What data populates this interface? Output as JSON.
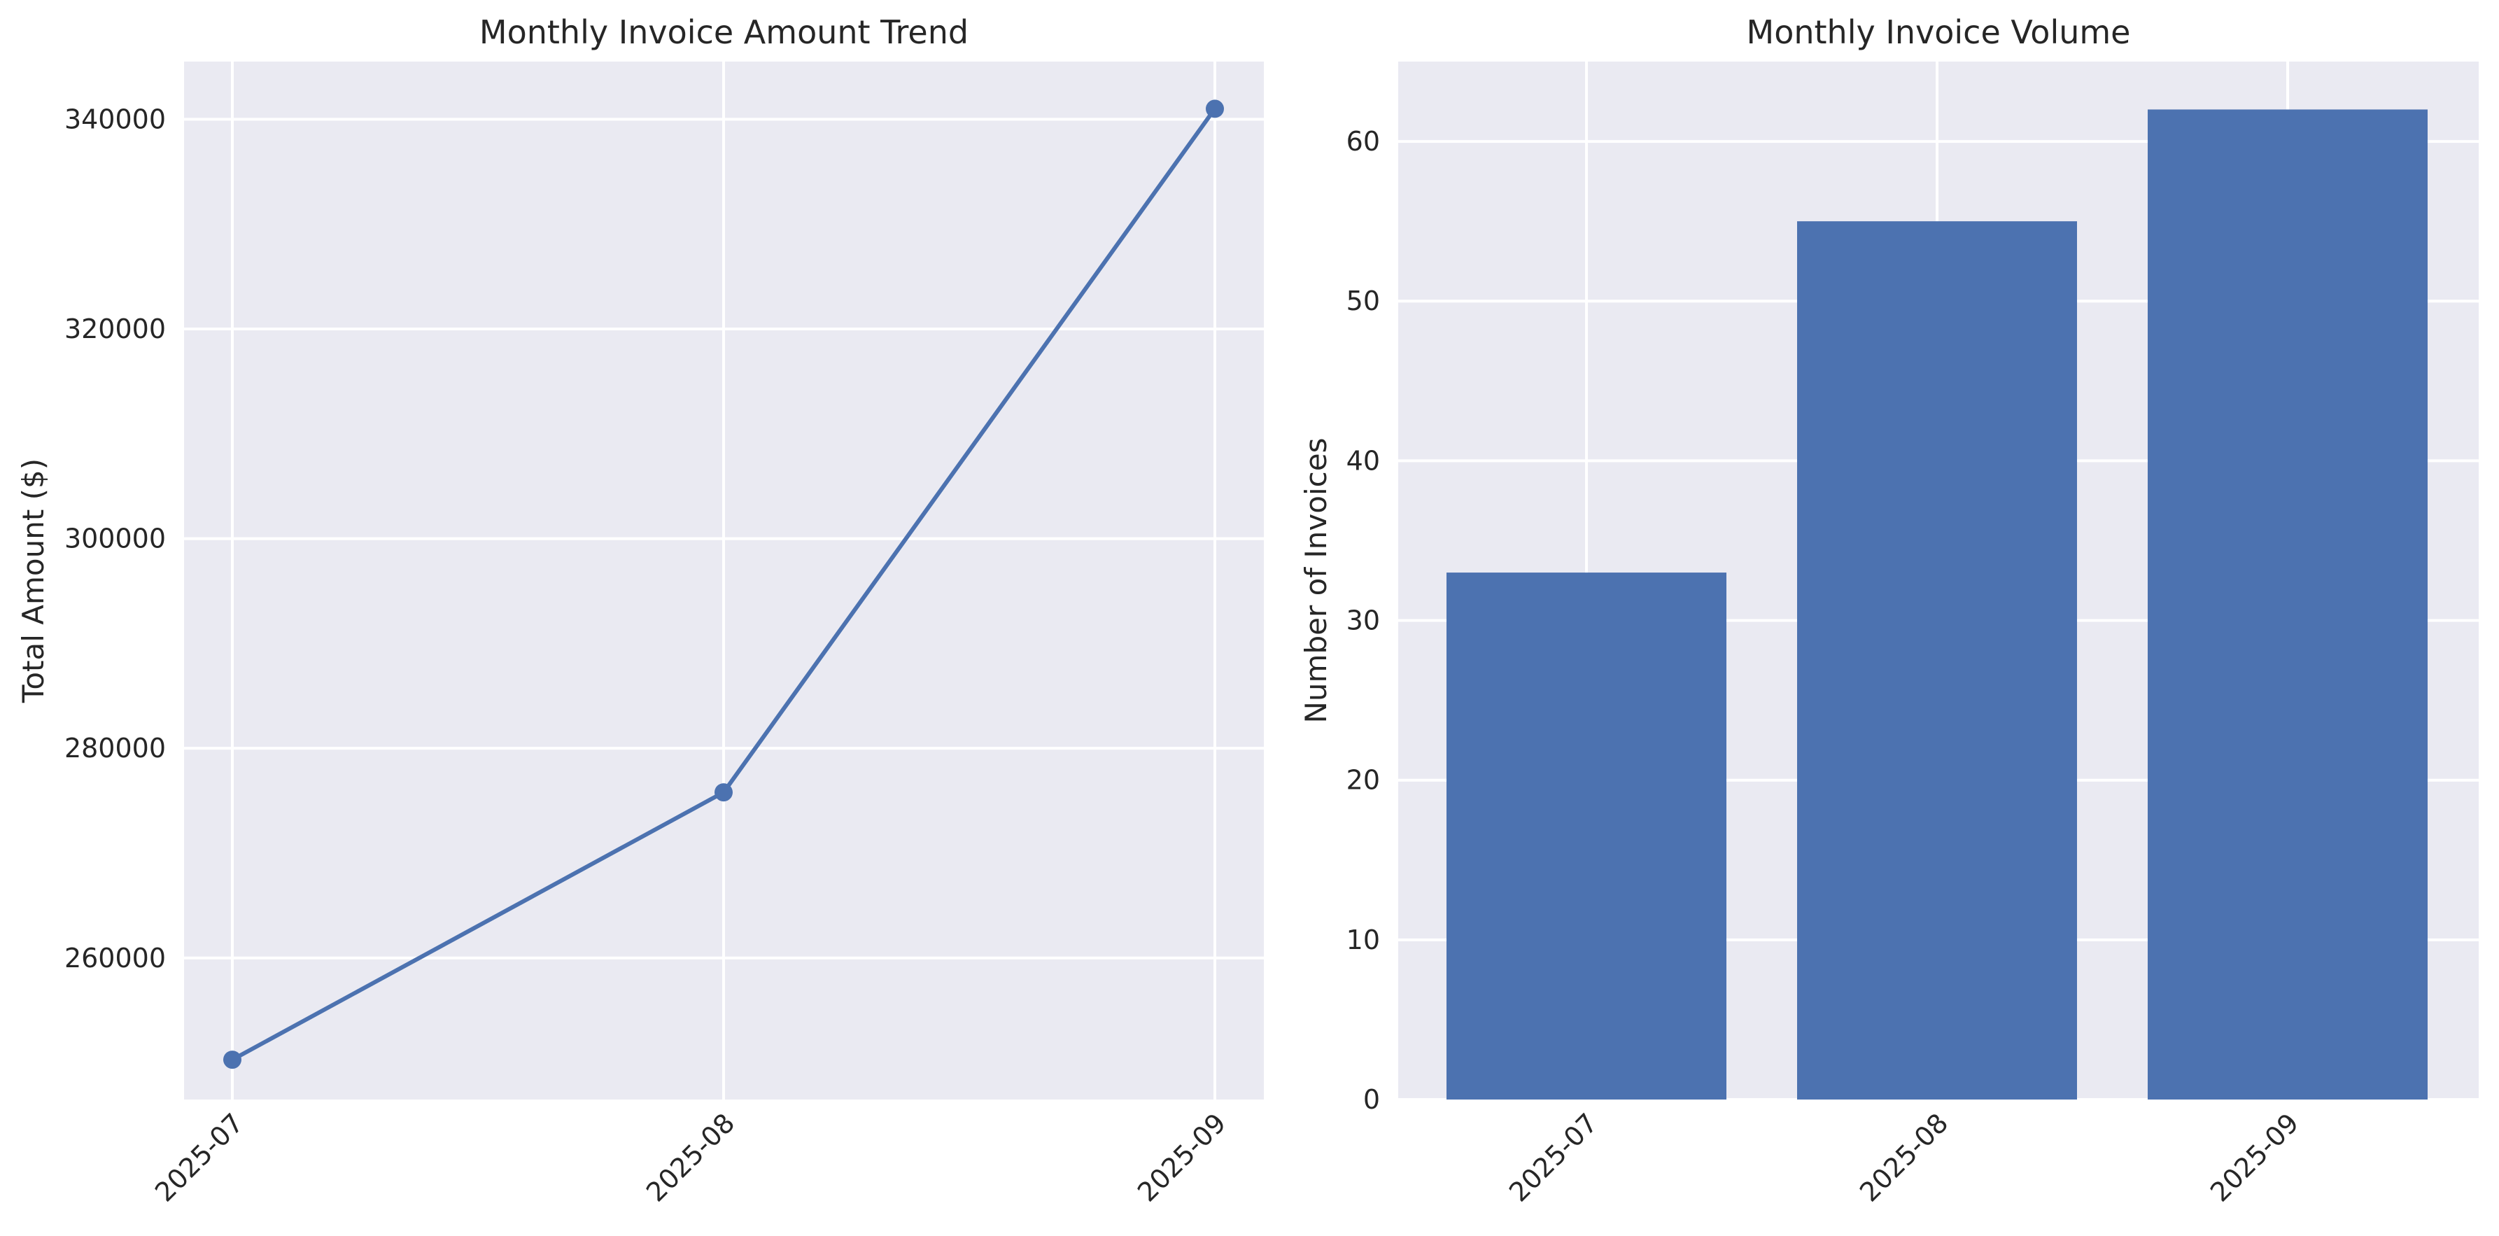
{
  "chart_data": [
    {
      "type": "line",
      "title": "Monthly Invoice Amount Trend",
      "xlabel": "",
      "ylabel": "Total Amount ($)",
      "categories": [
        "2025-07",
        "2025-08",
        "2025-09"
      ],
      "series": [
        {
          "values": [
            250300,
            275800,
            341000
          ],
          "color": "#4c72b0",
          "marker": "circle"
        }
      ],
      "ylim": [
        246500,
        345500
      ],
      "yticks": [
        260000,
        280000,
        300000,
        320000,
        340000
      ],
      "grid": true
    },
    {
      "type": "bar",
      "title": "Monthly Invoice Volume",
      "xlabel": "",
      "ylabel": "Number of Invoices",
      "categories": [
        "2025-07",
        "2025-08",
        "2025-09"
      ],
      "values": [
        33,
        55,
        62
      ],
      "color": "#4c72b0",
      "ylim": [
        0,
        65
      ],
      "yticks": [
        0,
        10,
        20,
        30,
        40,
        50,
        60
      ],
      "grid": true
    }
  ]
}
